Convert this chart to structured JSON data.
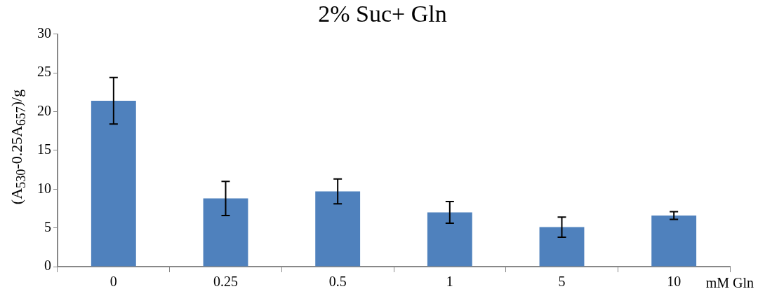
{
  "chart_data": {
    "type": "bar",
    "title": "2% Suc+ Gln",
    "xlabel": "mM Gln",
    "ylabel": "(A$_{530}$-0.25A$_{657}$)/g",
    "categories": [
      "0",
      "0.25",
      "0.5",
      "1",
      "5",
      "10"
    ],
    "values": [
      21.4,
      8.8,
      9.7,
      7.0,
      5.1,
      6.6
    ],
    "errors": [
      3.0,
      2.2,
      1.6,
      1.4,
      1.3,
      0.5
    ],
    "color": "#4f81bd",
    "ylim": [
      0,
      30
    ],
    "yticks": [
      0,
      5,
      10,
      15,
      20,
      25,
      30
    ]
  }
}
